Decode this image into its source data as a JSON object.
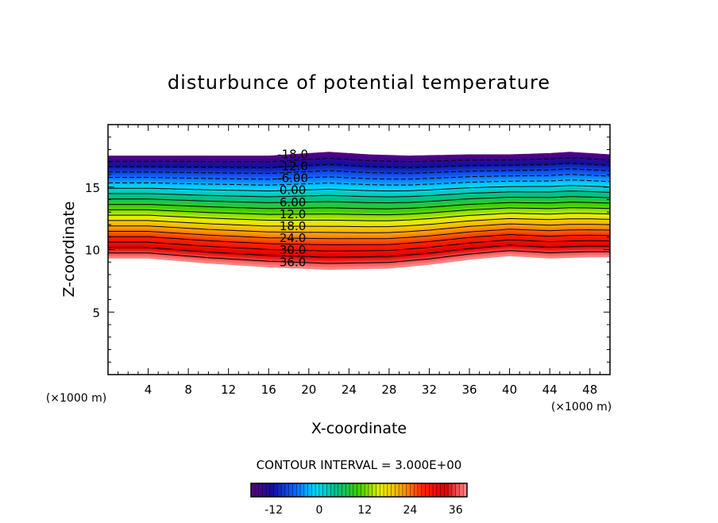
{
  "chart_data": {
    "type": "contour",
    "title": "disturbunce of potential temperature",
    "xlabel": "X-coordinate",
    "ylabel": "Z-coordinate",
    "x_unit": "(×1000 m)",
    "y_unit": "(×1000 m)",
    "xlim": [
      0,
      50
    ],
    "ylim": [
      0,
      20
    ],
    "x_ticks": [
      "4",
      "8",
      "12",
      "16",
      "20",
      "24",
      "28",
      "32",
      "36",
      "40",
      "44",
      "48"
    ],
    "y_ticks": [
      "5",
      "10",
      "15"
    ],
    "contour_interval_text": "CONTOUR INTERVAL = 3.000E+00",
    "contour_interval": 3.0,
    "value_range": [
      -18,
      39
    ],
    "contour_labels": [
      "-18.0",
      "-12.0",
      "-6.00",
      "0.00",
      "6.00",
      "12.0",
      "18.0",
      "24.0",
      "30.0",
      "36.0"
    ],
    "colorbar": {
      "ticks": [
        "-12",
        "0",
        "12",
        "24",
        "36"
      ],
      "min": -18,
      "max": 39,
      "colors": [
        "#5a0080",
        "#1010a0",
        "#1060ff",
        "#00d8ff",
        "#00c080",
        "#40d000",
        "#e8f000",
        "#ffa000",
        "#ff2000",
        "#e00000",
        "#ff9090"
      ]
    },
    "field": {
      "description_levels": "top (z≈17.5) is -18, decreasing to 39 near z≈9",
      "top_x": [
        0,
        8,
        16,
        20,
        22,
        26,
        30,
        36,
        40,
        44,
        46,
        50
      ],
      "top_z": [
        17.5,
        17.5,
        17.5,
        17.7,
        17.8,
        17.6,
        17.5,
        17.6,
        17.6,
        17.7,
        17.8,
        17.6
      ],
      "bottom_x": [
        0,
        4,
        10,
        16,
        22,
        28,
        32,
        36,
        40,
        44,
        48,
        50
      ],
      "bottom_z": [
        9.3,
        9.3,
        8.9,
        8.6,
        8.4,
        8.5,
        8.8,
        9.2,
        9.5,
        9.3,
        9.4,
        9.4
      ]
    }
  }
}
